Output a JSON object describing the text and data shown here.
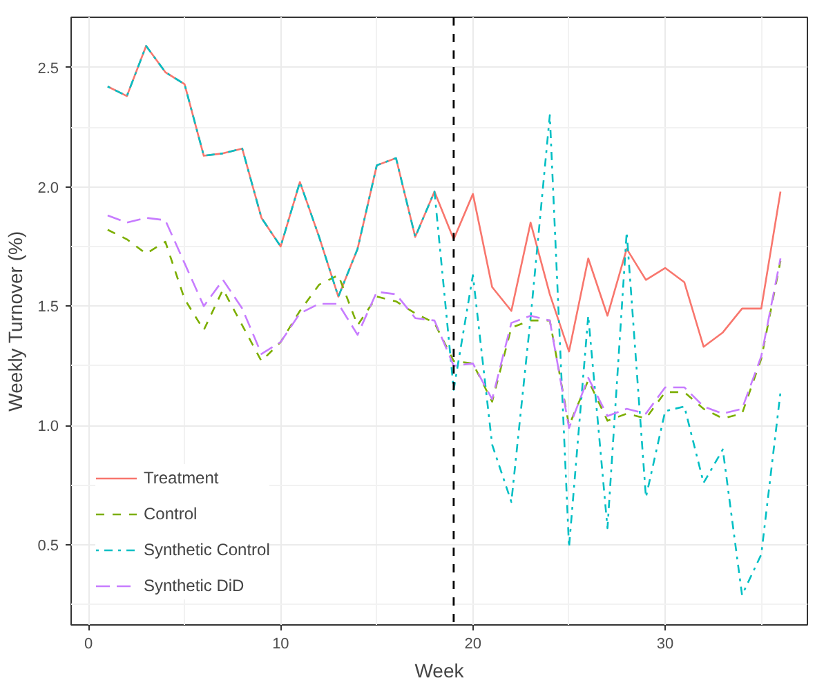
{
  "chart_data": {
    "type": "line",
    "xlabel": "Week",
    "ylabel": "Weekly Turnover (%)",
    "x": [
      1,
      2,
      3,
      4,
      5,
      6,
      7,
      8,
      9,
      10,
      11,
      12,
      13,
      14,
      15,
      16,
      17,
      18,
      19,
      20,
      21,
      22,
      23,
      24,
      25,
      26,
      27,
      28,
      29,
      30,
      31,
      32,
      33,
      34,
      35,
      36
    ],
    "series": [
      {
        "name": "Treatment",
        "color": "#f8766d",
        "line_style": "solid",
        "values": [
          2.42,
          2.38,
          2.59,
          2.48,
          2.43,
          2.13,
          2.14,
          2.16,
          1.87,
          1.75,
          2.02,
          1.79,
          1.54,
          1.74,
          2.09,
          2.12,
          1.79,
          1.98,
          1.78,
          1.97,
          1.58,
          1.48,
          1.85,
          1.55,
          1.31,
          1.7,
          1.46,
          1.74,
          1.61,
          1.66,
          1.6,
          1.33,
          1.39,
          1.49,
          1.49,
          1.98
        ]
      },
      {
        "name": "Control",
        "color": "#7cae00",
        "line_style": "dashed",
        "values": [
          1.82,
          1.78,
          1.72,
          1.77,
          1.53,
          1.4,
          1.57,
          1.42,
          1.27,
          1.35,
          1.48,
          1.59,
          1.63,
          1.42,
          1.54,
          1.52,
          1.47,
          1.43,
          1.27,
          1.26,
          1.1,
          1.41,
          1.44,
          1.44,
          1.0,
          1.19,
          1.02,
          1.05,
          1.03,
          1.14,
          1.14,
          1.07,
          1.03,
          1.05,
          1.28,
          1.69
        ]
      },
      {
        "name": "Synthetic Control",
        "color": "#00bfc4",
        "line_style": "dashdot",
        "values": [
          2.42,
          2.38,
          2.59,
          2.48,
          2.43,
          2.13,
          2.14,
          2.16,
          1.87,
          1.75,
          2.02,
          1.79,
          1.54,
          1.74,
          2.09,
          2.12,
          1.79,
          1.98,
          1.15,
          1.63,
          0.92,
          0.68,
          1.45,
          2.3,
          0.49,
          1.46,
          0.57,
          1.81,
          0.7,
          1.06,
          1.08,
          0.76,
          0.9,
          0.29,
          0.46,
          1.14
        ]
      },
      {
        "name": "Synthetic DiD",
        "color": "#c77cff",
        "line_style": "longdash",
        "values": [
          1.88,
          1.85,
          1.87,
          1.86,
          1.68,
          1.5,
          1.61,
          1.49,
          1.3,
          1.35,
          1.47,
          1.51,
          1.51,
          1.38,
          1.56,
          1.55,
          1.45,
          1.44,
          1.25,
          1.26,
          1.11,
          1.43,
          1.46,
          1.44,
          0.99,
          1.2,
          1.04,
          1.07,
          1.05,
          1.16,
          1.16,
          1.08,
          1.05,
          1.07,
          1.29,
          1.7
        ]
      }
    ],
    "xlim": [
      -0.9,
      37.4
    ],
    "ylim": [
      0.165,
      2.71
    ],
    "xticks": [
      0,
      10,
      20,
      30
    ],
    "yticks": [
      {
        "value": 0.5,
        "label": "0.5"
      },
      {
        "value": 1.0,
        "label": "1.0"
      },
      {
        "value": 1.5,
        "label": "1.5"
      },
      {
        "value": 2.0,
        "label": "2.0"
      },
      {
        "value": 2.5,
        "label": "2.5"
      }
    ],
    "ref_lines": [
      {
        "axis": "x",
        "value": 19,
        "label": null,
        "color": "#000000",
        "line_style": "dashed"
      }
    ],
    "grid": true,
    "legend": "bottom left"
  }
}
